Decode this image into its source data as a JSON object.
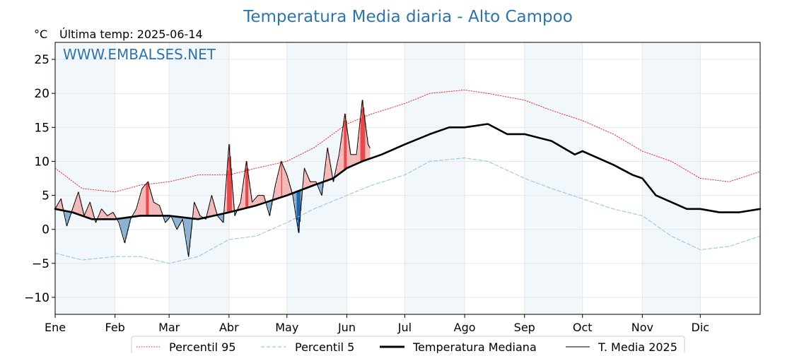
{
  "chart_data": {
    "type": "line",
    "title": "Temperatura Media diaria - Alto Campoo",
    "ylabel": "°C",
    "subtitle": "Última temp: 2025-06-14",
    "watermark": "WWW.EMBALSES.NET",
    "ylim": [
      -12.5,
      27.5
    ],
    "yticks": [
      -10,
      -5,
      0,
      5,
      10,
      15,
      20,
      25
    ],
    "ytick_labels": [
      "−10",
      "−5",
      "0",
      "5",
      "10",
      "15",
      "20",
      "25"
    ],
    "x_tick_labels": [
      "Ene",
      "Feb",
      "Mar",
      "Abr",
      "May",
      "Jun",
      "Jul",
      "Ago",
      "Sep",
      "Oct",
      "Nov",
      "Dic"
    ],
    "x_tick_days": [
      1,
      32,
      60,
      91,
      121,
      152,
      182,
      213,
      244,
      274,
      305,
      335
    ],
    "x_range_days": [
      1,
      366
    ],
    "shaded_months": [
      "Ene",
      "Mar",
      "May",
      "Jul",
      "Sep",
      "Nov"
    ],
    "grid": true,
    "legend_position": "bottom-center",
    "series": [
      {
        "name": "Percentil 95",
        "color": "#e41a1c",
        "style": "dotted",
        "day": [
          1,
          15,
          32,
          45,
          60,
          75,
          91,
          105,
          121,
          135,
          152,
          165,
          182,
          195,
          213,
          225,
          244,
          258,
          274,
          290,
          305,
          320,
          335,
          350,
          366
        ],
        "values": [
          9.0,
          6.0,
          5.5,
          6.5,
          7.0,
          8.0,
          8.0,
          9.0,
          10.0,
          12.0,
          15.5,
          17.0,
          18.5,
          20.0,
          20.5,
          20.0,
          19.0,
          17.5,
          16.0,
          14.0,
          11.5,
          10.0,
          7.5,
          7.0,
          8.5
        ]
      },
      {
        "name": "Percentil 5",
        "color": "#9ecae1",
        "style": "dashed",
        "day": [
          1,
          15,
          32,
          45,
          60,
          75,
          91,
          105,
          121,
          135,
          152,
          165,
          182,
          195,
          213,
          225,
          244,
          258,
          274,
          290,
          305,
          320,
          335,
          350,
          366
        ],
        "values": [
          -3.5,
          -4.5,
          -4.0,
          -4.0,
          -5.0,
          -4.0,
          -1.5,
          -1.0,
          1.0,
          3.0,
          5.0,
          6.5,
          8.0,
          10.0,
          10.5,
          10.0,
          7.5,
          6.0,
          4.5,
          3.0,
          2.0,
          -1.0,
          -3.0,
          -2.5,
          -1.0
        ]
      },
      {
        "name": "Temperatura Mediana",
        "color": "#000000",
        "style": "thick",
        "day": [
          1,
          10,
          20,
          32,
          45,
          60,
          75,
          91,
          105,
          121,
          135,
          145,
          152,
          160,
          170,
          182,
          195,
          205,
          213,
          225,
          235,
          244,
          258,
          270,
          274,
          290,
          300,
          305,
          312,
          320,
          328,
          335,
          345,
          355,
          366
        ],
        "values": [
          3.0,
          2.5,
          1.5,
          1.5,
          2.0,
          2.0,
          1.5,
          2.5,
          3.5,
          5.0,
          6.5,
          7.5,
          9.0,
          10.0,
          11.0,
          12.5,
          14.0,
          15.0,
          15.0,
          15.5,
          14.0,
          14.0,
          13.0,
          11.0,
          11.5,
          9.5,
          8.0,
          7.5,
          5.0,
          4.0,
          3.0,
          3.0,
          2.5,
          2.5,
          3.0
        ]
      },
      {
        "name": "T. Media 2025",
        "color": "#000000",
        "style": "thin",
        "day": [
          1,
          4,
          7,
          10,
          13,
          16,
          19,
          22,
          25,
          28,
          31,
          34,
          37,
          40,
          43,
          46,
          49,
          52,
          55,
          58,
          61,
          64,
          67,
          70,
          73,
          76,
          79,
          82,
          85,
          88,
          91,
          94,
          97,
          100,
          103,
          106,
          109,
          112,
          115,
          118,
          121,
          124,
          127,
          130,
          133,
          136,
          139,
          142,
          145,
          148,
          151,
          154,
          157,
          160,
          163,
          164
        ],
        "values": [
          3.0,
          4.5,
          0.5,
          3.0,
          5.5,
          2.0,
          4.0,
          1.0,
          3.0,
          2.0,
          2.5,
          1.0,
          -2.0,
          1.5,
          3.0,
          6.0,
          7.0,
          4.0,
          3.5,
          1.0,
          2.0,
          0.0,
          1.5,
          -4.0,
          4.0,
          2.0,
          1.5,
          5.0,
          2.0,
          1.0,
          12.5,
          2.0,
          4.0,
          10.0,
          4.0,
          5.0,
          5.0,
          2.0,
          6.5,
          10.0,
          8.0,
          5.0,
          -0.5,
          9.0,
          7.0,
          7.0,
          5.0,
          12.0,
          7.0,
          11.0,
          17.0,
          11.0,
          11.0,
          19.0,
          12.5,
          12.0
        ]
      }
    ]
  }
}
